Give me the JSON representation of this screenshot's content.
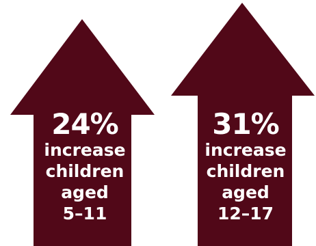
{
  "colors": {
    "arrow": "#510818",
    "text": "#ffffff",
    "background": "#ffffff"
  },
  "arrows": [
    {
      "percent": "24%",
      "line1": "increase",
      "line2": "children",
      "line3": "aged",
      "line4": "5–11",
      "icon": "up-arrow-icon"
    },
    {
      "percent": "31%",
      "line1": "increase",
      "line2": "children",
      "line3": "aged",
      "line4": "12–17",
      "icon": "up-arrow-icon"
    }
  ]
}
